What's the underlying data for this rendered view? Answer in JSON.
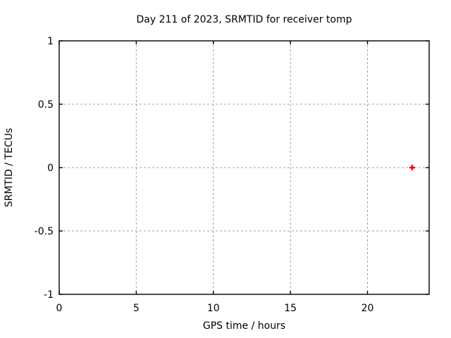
{
  "figure": {
    "background": "#ffffff"
  },
  "chart_data": {
    "type": "scatter",
    "title": "Day 211 of 2023, SRMTID for receiver tomp",
    "xlabel": "GPS time / hours",
    "ylabel": "SRMTID / TECUs",
    "xlim": [
      0,
      24
    ],
    "ylim": [
      -1,
      1
    ],
    "xticks": [
      0,
      5,
      10,
      15,
      20
    ],
    "xtick_labels": [
      "0",
      "5",
      "10",
      "15",
      "20"
    ],
    "yticks": [
      -1,
      -0.5,
      0,
      0.5,
      1
    ],
    "ytick_labels": [
      "-1",
      "-0.5",
      "0",
      "0.5",
      "1"
    ],
    "grid": true,
    "grid_style": "dashed",
    "legend": false,
    "colors": {
      "grid": "#a0a0a0",
      "axis": "#000000",
      "text": "#000000",
      "marker": "#ff0000"
    },
    "series": [
      {
        "label": "",
        "marker": "plus",
        "color": "#ff0000",
        "points": [
          {
            "x": 22.9,
            "y": 0.0
          }
        ]
      }
    ]
  }
}
